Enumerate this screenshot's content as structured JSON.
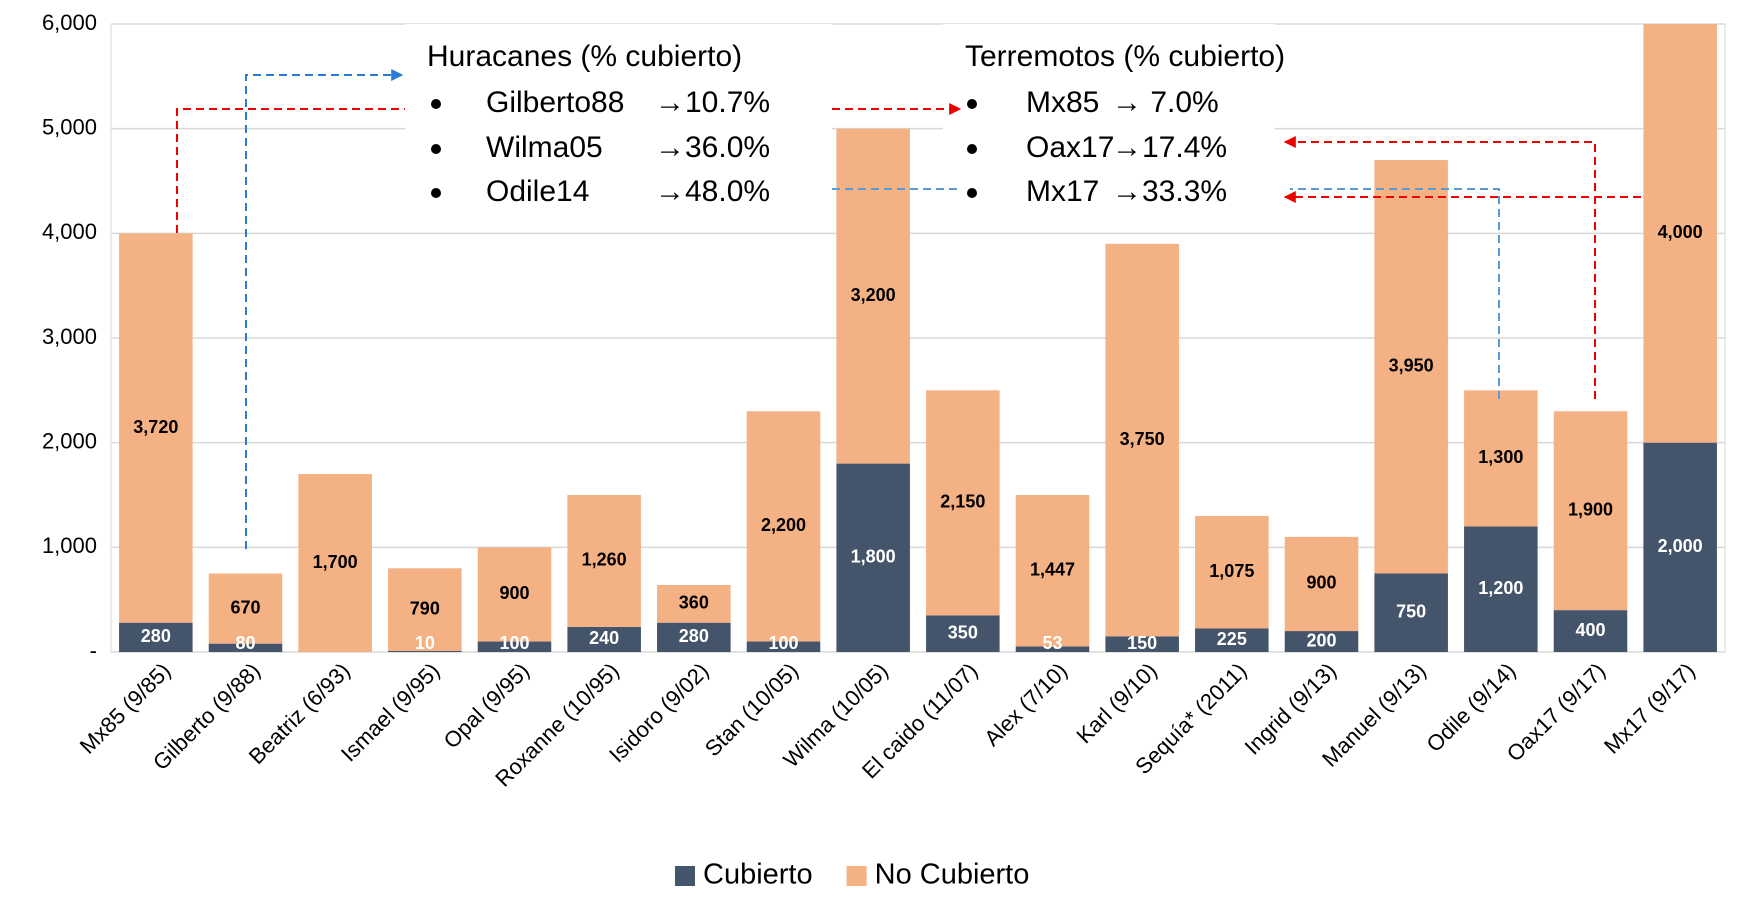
{
  "chart_data": {
    "type": "stacked_bar",
    "categories": [
      "Mx85 (9/85)",
      "Gilberto (9/88)",
      "Beatriz (6/93)",
      "Ismael (9/95)",
      "Opal (9/95)",
      "Roxanne (10/95)",
      "Isidoro (9/02)",
      "Stan (10/05)",
      "Wilma (10/05)",
      "El caido (11/07)",
      "Alex (7/10)",
      "Karl (9/10)",
      "Sequía* (2011)",
      "Ingrid (9/13)",
      "Manuel (9/13)",
      "Odile (9/14)",
      "Oax17 (9/17)",
      "Mx17 (9/17)"
    ],
    "series": [
      {
        "name": "Cubierto",
        "color": "#44546a",
        "label_color": "#ffffff",
        "values": [
          280,
          80,
          0,
          10,
          100,
          240,
          280,
          100,
          1800,
          350,
          53,
          150,
          225,
          200,
          750,
          1200,
          400,
          2000
        ],
        "value_labels": [
          "280",
          "80",
          null,
          "10",
          "100",
          "240",
          "280",
          "100",
          "1,800",
          "350",
          "53",
          "150",
          "225",
          "200",
          "750",
          "1,200",
          "400",
          "2,000"
        ]
      },
      {
        "name": "No Cubierto",
        "color": "#f4b183",
        "label_color": "#000000",
        "values": [
          3720,
          670,
          1700,
          790,
          900,
          1260,
          360,
          2200,
          3200,
          2150,
          1447,
          3750,
          1075,
          900,
          3950,
          1300,
          1900,
          4000
        ],
        "value_labels": [
          "3,720",
          "670",
          "1,700",
          "790",
          "900",
          "1,260",
          "360",
          "2,200",
          "3,200",
          "2,150",
          "1,447",
          "3,750",
          "1,075",
          "900",
          "3,950",
          "1,300",
          "1,900",
          "4,000"
        ]
      }
    ],
    "ylim": [
      0,
      6000
    ],
    "yticks": [
      {
        "value": 0,
        "label": "-"
      },
      {
        "value": 1000,
        "label": "1,000"
      },
      {
        "value": 2000,
        "label": "2,000"
      },
      {
        "value": 3000,
        "label": "3,000"
      },
      {
        "value": 4000,
        "label": "4,000"
      },
      {
        "value": 5000,
        "label": "5,000"
      },
      {
        "value": 6000,
        "label": "6,000"
      }
    ],
    "grid": true,
    "legend": "bottom",
    "annotations": [
      {
        "title": "Huracanes (% cubierto)",
        "items": [
          [
            "Gilberto88",
            "→10.7%"
          ],
          [
            "Wilma05",
            "→36.0%"
          ],
          [
            "Odile14",
            "→48.0%"
          ]
        ]
      },
      {
        "title": "Terremotos (% cubierto)",
        "items": [
          [
            "Mx85",
            "→ 7.0%"
          ],
          [
            "Oax17",
            "→17.4%"
          ],
          [
            "Mx17",
            "→33.3%"
          ]
        ]
      }
    ]
  }
}
